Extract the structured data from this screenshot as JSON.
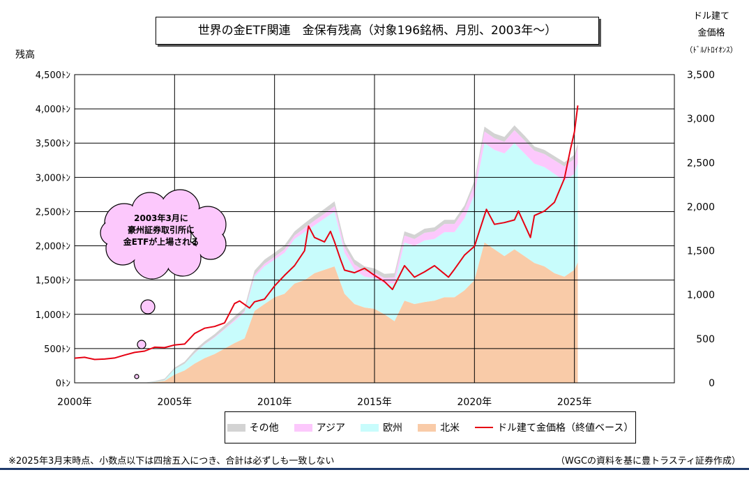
{
  "chart_data": {
    "type": "area",
    "title": "世界の金ETF関連　金保有残高（対象196銘柄、月別、2003年～）",
    "ylabel_left": "残高",
    "ylabel_right_lines": [
      "ドル建て",
      "金価格",
      "（ﾄﾞﾙ/ﾄﾛｲｵﾝｽ）"
    ],
    "x_ticks": [
      "2000年",
      "2005年",
      "2010年",
      "2015年",
      "2020年",
      "2025年"
    ],
    "x_range": [
      2000,
      2030
    ],
    "y_left_ticks": [
      "0ﾄﾝ",
      "500ﾄﾝ",
      "1,000ﾄﾝ",
      "1,500ﾄﾝ",
      "2,000ﾄﾝ",
      "2,500ﾄﾝ",
      "3,000ﾄﾝ",
      "3,500ﾄﾝ",
      "4,000ﾄﾝ",
      "4,500ﾄﾝ"
    ],
    "y_left_range": [
      0,
      4500
    ],
    "y_right_ticks": [
      "0",
      "500",
      "1,000",
      "1,500",
      "2,000",
      "2,500",
      "3,000",
      "3,500"
    ],
    "y_right_range": [
      0,
      3500
    ],
    "grid": true,
    "legend_position": "bottom",
    "x": [
      2003.0,
      2003.5,
      2004.0,
      2004.5,
      2005.0,
      2005.5,
      2006.0,
      2006.5,
      2007.0,
      2007.5,
      2008.0,
      2008.5,
      2009.0,
      2009.5,
      2010.0,
      2010.5,
      2011.0,
      2011.5,
      2012.0,
      2012.5,
      2013.0,
      2013.5,
      2014.0,
      2014.5,
      2015.0,
      2015.5,
      2016.0,
      2016.5,
      2017.0,
      2017.5,
      2018.0,
      2018.5,
      2019.0,
      2019.5,
      2020.0,
      2020.5,
      2021.0,
      2021.5,
      2022.0,
      2022.5,
      2023.0,
      2023.5,
      2024.0,
      2024.5,
      2025.0,
      2025.17
    ],
    "series": [
      {
        "name": "北米",
        "color": "#f9cba8",
        "values": [
          0,
          0,
          10,
          30,
          120,
          180,
          280,
          360,
          420,
          500,
          580,
          650,
          1050,
          1150,
          1250,
          1300,
          1450,
          1500,
          1600,
          1650,
          1700,
          1300,
          1150,
          1100,
          1080,
          1000,
          900,
          1200,
          1150,
          1180,
          1200,
          1250,
          1250,
          1350,
          1500,
          2050,
          1950,
          1850,
          1950,
          1850,
          1750,
          1700,
          1600,
          1550,
          1650,
          1760
        ]
      },
      {
        "name": "欧州",
        "color": "#c8fcfc",
        "values": [
          0,
          0,
          5,
          10,
          80,
          100,
          150,
          200,
          240,
          280,
          320,
          380,
          500,
          550,
          550,
          600,
          650,
          700,
          700,
          750,
          800,
          600,
          500,
          450,
          450,
          450,
          550,
          850,
          850,
          900,
          900,
          950,
          950,
          1050,
          1250,
          1450,
          1450,
          1500,
          1550,
          1500,
          1450,
          1450,
          1450,
          1400,
          1400,
          1450
        ]
      },
      {
        "name": "アジア",
        "color": "#fcc8fc",
        "values": [
          0,
          0,
          0,
          0,
          0,
          0,
          5,
          5,
          10,
          10,
          20,
          20,
          30,
          40,
          40,
          50,
          50,
          60,
          70,
          70,
          80,
          80,
          80,
          80,
          80,
          80,
          90,
          100,
          100,
          110,
          110,
          120,
          120,
          130,
          140,
          170,
          170,
          170,
          190,
          190,
          190,
          190,
          200,
          210,
          220,
          230
        ]
      },
      {
        "name": "その他",
        "color": "#d3d3d3",
        "values": [
          0,
          0,
          10,
          20,
          20,
          30,
          40,
          40,
          40,
          50,
          50,
          50,
          60,
          60,
          60,
          60,
          60,
          70,
          70,
          70,
          70,
          70,
          70,
          70,
          60,
          60,
          60,
          60,
          60,
          60,
          60,
          60,
          60,
          60,
          60,
          70,
          70,
          70,
          70,
          70,
          60,
          60,
          60,
          60,
          60,
          60
        ]
      }
    ],
    "price_series": {
      "name": "ドル建て金価格（終値ベース）",
      "color": "#e60012",
      "x": [
        2000.0,
        2000.5,
        2001.0,
        2001.5,
        2002.0,
        2002.5,
        2003.0,
        2003.5,
        2004.0,
        2004.5,
        2005.0,
        2005.5,
        2006.0,
        2006.5,
        2007.0,
        2007.5,
        2008.0,
        2008.25,
        2008.75,
        2009.0,
        2009.5,
        2010.0,
        2010.5,
        2011.0,
        2011.5,
        2011.7,
        2012.0,
        2012.5,
        2012.8,
        2013.0,
        2013.3,
        2013.5,
        2014.0,
        2014.5,
        2015.0,
        2015.5,
        2015.9,
        2016.5,
        2017.0,
        2017.5,
        2018.0,
        2018.7,
        2019.0,
        2019.5,
        2020.0,
        2020.6,
        2021.0,
        2021.5,
        2022.0,
        2022.2,
        2022.8,
        2023.0,
        2023.5,
        2024.0,
        2024.5,
        2024.8,
        2025.0,
        2025.17
      ],
      "values": [
        280,
        290,
        265,
        270,
        282,
        315,
        345,
        360,
        405,
        400,
        430,
        440,
        560,
        620,
        640,
        680,
        900,
        930,
        850,
        920,
        950,
        1100,
        1220,
        1330,
        1500,
        1780,
        1650,
        1600,
        1720,
        1600,
        1400,
        1280,
        1250,
        1300,
        1220,
        1150,
        1060,
        1330,
        1200,
        1260,
        1330,
        1200,
        1290,
        1450,
        1550,
        1970,
        1800,
        1820,
        1850,
        1950,
        1650,
        1900,
        1950,
        2050,
        2320,
        2650,
        2850,
        3150
      ]
    },
    "annotation": {
      "lines": [
        "2003年3月に",
        "豪州証券取引所に",
        "金ETFが上場される"
      ]
    }
  },
  "footnote_left": "※2025年3月末時点、小数点以下は四捨五入につき、合計は必ずしも一致しない",
  "footnote_right": "（WGCの資料を基に豊トラスティ証券作成）"
}
